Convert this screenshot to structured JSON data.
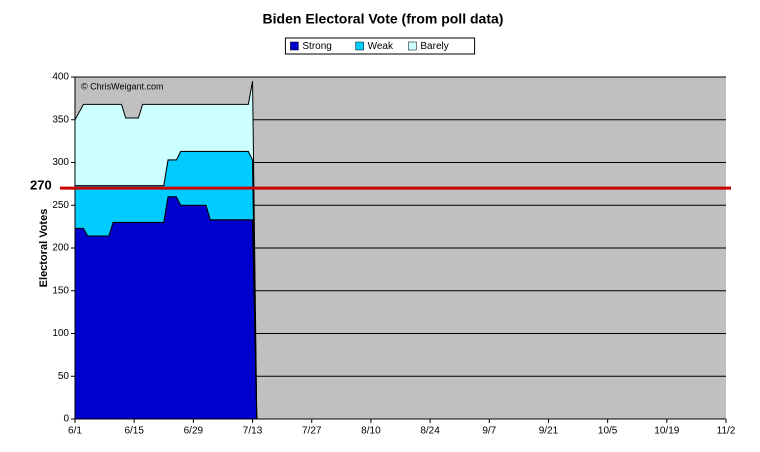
{
  "chart_data": {
    "type": "stacked_area",
    "title": "Biden Electoral Vote (from poll data)",
    "y_label": "Electoral Votes",
    "annotation": "© ChrisWeigant.com",
    "x": [
      0,
      2,
      3,
      8,
      9,
      11,
      12,
      15,
      16,
      21,
      22,
      24,
      25,
      31,
      32,
      41,
      42,
      43
    ],
    "series": [
      {
        "name": "Strong",
        "color": "#0000cc",
        "values": [
          223,
          223,
          214,
          214,
          230,
          230,
          230,
          230,
          230,
          230,
          260,
          260,
          250,
          250,
          233,
          233,
          233,
          0
        ]
      },
      {
        "name": "Weak",
        "color": "#00ccff",
        "values": [
          50,
          50,
          59,
          59,
          43,
          43,
          43,
          43,
          43,
          43,
          43,
          43,
          63,
          63,
          80,
          80,
          70,
          0
        ]
      },
      {
        "name": "Barely",
        "color": "#ccffff",
        "values": [
          77,
          95,
          95,
          95,
          95,
          95,
          79,
          79,
          95,
          95,
          65,
          65,
          55,
          55,
          55,
          55,
          92,
          0
        ]
      }
    ],
    "xlim": [
      0,
      154
    ],
    "xticks": [
      {
        "value": 0,
        "label": "6/1"
      },
      {
        "value": 14,
        "label": "6/15"
      },
      {
        "value": 28,
        "label": "6/29"
      },
      {
        "value": 42,
        "label": "7/13"
      },
      {
        "value": 56,
        "label": "7/27"
      },
      {
        "value": 70,
        "label": "8/10"
      },
      {
        "value": 84,
        "label": "8/24"
      },
      {
        "value": 98,
        "label": "9/7"
      },
      {
        "value": 112,
        "label": "9/21"
      },
      {
        "value": 126,
        "label": "10/5"
      },
      {
        "value": 140,
        "label": "10/19"
      },
      {
        "value": 154,
        "label": "11/2"
      }
    ],
    "ylim": [
      0,
      400
    ],
    "yticks": [
      0,
      50,
      100,
      150,
      200,
      250,
      300,
      350,
      400
    ],
    "grid": true,
    "plot_background": "#c0c0c0",
    "legend_position": "top",
    "reference_line": {
      "value": 270,
      "color": "#cc0000"
    }
  }
}
